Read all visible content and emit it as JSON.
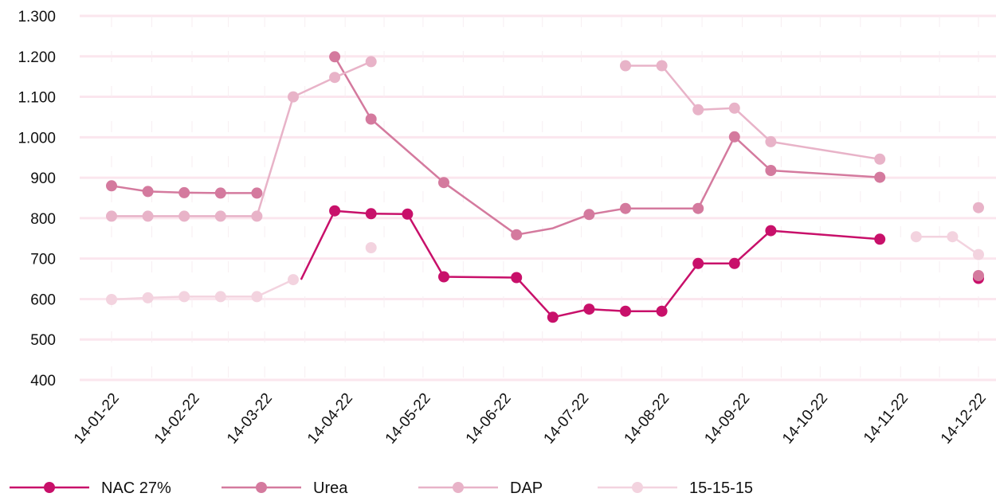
{
  "chart_data": {
    "type": "line",
    "title": "",
    "xlabel": "",
    "ylabel": "",
    "ylim": [
      400,
      1300
    ],
    "yticks": [
      "1.300",
      "1.200",
      "1.100",
      "1.000",
      "900",
      "800",
      "700",
      "600",
      "500",
      "400"
    ],
    "ytick_values": [
      1300,
      1200,
      1100,
      1000,
      900,
      800,
      700,
      600,
      500,
      400
    ],
    "xlim": [
      "2022-01-14",
      "2022-12-14"
    ],
    "xticks": [
      "14-01-22",
      "14-02-22",
      "14-03-22",
      "14-04-22",
      "14-05-22",
      "14-06-22",
      "14-07-22",
      "14-08-22",
      "14-09-22",
      "14-10-22",
      "14-11-22",
      "14-12-22"
    ],
    "xtick_dates": [
      "2022-01-14",
      "2022-02-14",
      "2022-03-14",
      "2022-04-14",
      "2022-05-14",
      "2022-06-14",
      "2022-07-14",
      "2022-08-14",
      "2022-09-14",
      "2022-10-14",
      "2022-11-14",
      "2022-12-14"
    ],
    "grid": true,
    "legend_position": "bottom",
    "series": [
      {
        "name": "NAC 27%",
        "color": "#c8106a",
        "segments": [
          [
            [
              "2022-03-28",
              648
            ],
            [
              "2022-04-10",
              818
            ],
            [
              "2022-04-24",
              811
            ],
            [
              "2022-05-08",
              810
            ],
            [
              "2022-05-22",
              655
            ],
            [
              "2022-06-19",
              653
            ],
            [
              "2022-07-03",
              555
            ],
            [
              "2022-07-17",
              575
            ],
            [
              "2022-07-31",
              570
            ],
            [
              "2022-08-14",
              570
            ],
            [
              "2022-08-28",
              688
            ],
            [
              "2022-09-11",
              688
            ],
            [
              "2022-09-25",
              769
            ],
            [
              "2022-11-06",
              748
            ]
          ],
          [
            [
              "2022-12-14",
              651
            ]
          ]
        ],
        "markers": [
          [
            "2022-04-10",
            818
          ],
          [
            "2022-04-24",
            811
          ],
          [
            "2022-05-08",
            810
          ],
          [
            "2022-05-22",
            655
          ],
          [
            "2022-06-19",
            653
          ],
          [
            "2022-07-03",
            555
          ],
          [
            "2022-07-17",
            575
          ],
          [
            "2022-07-31",
            570
          ],
          [
            "2022-08-14",
            570
          ],
          [
            "2022-08-28",
            688
          ],
          [
            "2022-09-11",
            688
          ],
          [
            "2022-09-25",
            769
          ],
          [
            "2022-11-06",
            748
          ],
          [
            "2022-12-14",
            651
          ]
        ]
      },
      {
        "name": "Urea",
        "color": "#d47a9e",
        "segments": [
          [
            [
              "2022-01-14",
              880
            ],
            [
              "2022-01-28",
              866
            ],
            [
              "2022-02-11",
              863
            ],
            [
              "2022-02-25",
              862
            ],
            [
              "2022-03-11",
              862
            ]
          ],
          [
            [
              "2022-04-10",
              1199
            ],
            [
              "2022-04-24",
              1045
            ],
            [
              "2022-05-22",
              888
            ],
            [
              "2022-06-19",
              759
            ],
            [
              "2022-07-03",
              775
            ],
            [
              "2022-07-17",
              809
            ],
            [
              "2022-07-31",
              824
            ],
            [
              "2022-08-28",
              824
            ],
            [
              "2022-09-11",
              1001
            ],
            [
              "2022-09-25",
              918
            ],
            [
              "2022-11-06",
              901
            ]
          ],
          [
            [
              "2022-12-14",
              658
            ]
          ]
        ],
        "markers": [
          [
            "2022-01-14",
            880
          ],
          [
            "2022-01-28",
            866
          ],
          [
            "2022-02-11",
            863
          ],
          [
            "2022-02-25",
            862
          ],
          [
            "2022-03-11",
            862
          ],
          [
            "2022-04-10",
            1199
          ],
          [
            "2022-04-24",
            1045
          ],
          [
            "2022-05-22",
            888
          ],
          [
            "2022-06-19",
            759
          ],
          [
            "2022-07-17",
            809
          ],
          [
            "2022-07-31",
            824
          ],
          [
            "2022-08-28",
            824
          ],
          [
            "2022-09-11",
            1001
          ],
          [
            "2022-09-25",
            918
          ],
          [
            "2022-11-06",
            901
          ],
          [
            "2022-12-14",
            658
          ]
        ]
      },
      {
        "name": "DAP",
        "color": "#e8b3c8",
        "segments": [
          [
            [
              "2022-01-14",
              805
            ],
            [
              "2022-01-28",
              805
            ],
            [
              "2022-02-11",
              805
            ],
            [
              "2022-02-25",
              805
            ],
            [
              "2022-03-11",
              805
            ],
            [
              "2022-03-25",
              1100
            ],
            [
              "2022-04-10",
              1148
            ],
            [
              "2022-04-24",
              1187
            ]
          ],
          [
            [
              "2022-07-31",
              1177
            ],
            [
              "2022-08-14",
              1177
            ],
            [
              "2022-08-28",
              1068
            ],
            [
              "2022-09-11",
              1072
            ],
            [
              "2022-09-25",
              989
            ],
            [
              "2022-11-06",
              946
            ]
          ],
          [
            [
              "2022-12-14",
              826
            ]
          ]
        ],
        "markers": [
          [
            "2022-01-14",
            805
          ],
          [
            "2022-01-28",
            805
          ],
          [
            "2022-02-11",
            805
          ],
          [
            "2022-02-25",
            805
          ],
          [
            "2022-03-11",
            805
          ],
          [
            "2022-03-25",
            1100
          ],
          [
            "2022-04-10",
            1148
          ],
          [
            "2022-04-24",
            1187
          ],
          [
            "2022-07-31",
            1177
          ],
          [
            "2022-08-14",
            1177
          ],
          [
            "2022-08-28",
            1068
          ],
          [
            "2022-09-11",
            1072
          ],
          [
            "2022-09-25",
            989
          ],
          [
            "2022-11-06",
            946
          ],
          [
            "2022-12-14",
            826
          ]
        ]
      },
      {
        "name": "15-15-15",
        "color": "#f3d3df",
        "segments": [
          [
            [
              "2022-01-14",
              599
            ],
            [
              "2022-01-28",
              603
            ],
            [
              "2022-02-11",
              606
            ],
            [
              "2022-02-25",
              606
            ],
            [
              "2022-03-11",
              606
            ],
            [
              "2022-03-25",
              648
            ]
          ],
          [
            [
              "2022-04-24",
              727
            ]
          ],
          [
            [
              "2022-11-20",
              754
            ],
            [
              "2022-12-04",
              754
            ],
            [
              "2022-12-14",
              710
            ]
          ]
        ],
        "markers": [
          [
            "2022-01-14",
            599
          ],
          [
            "2022-01-28",
            603
          ],
          [
            "2022-02-11",
            606
          ],
          [
            "2022-02-25",
            606
          ],
          [
            "2022-03-11",
            606
          ],
          [
            "2022-03-25",
            648
          ],
          [
            "2022-04-24",
            727
          ],
          [
            "2022-11-20",
            754
          ],
          [
            "2022-12-04",
            754
          ],
          [
            "2022-12-14",
            710
          ]
        ]
      }
    ]
  }
}
